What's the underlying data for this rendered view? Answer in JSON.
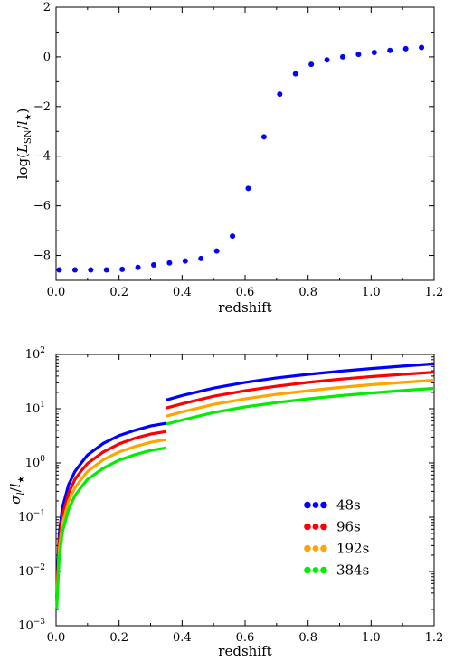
{
  "chart_data": [
    {
      "type": "scatter",
      "xlabel": "redshift",
      "ylabel": "log(L_SN/l_★)",
      "ylabel_main": "log(",
      "ylabel_L": "L",
      "ylabel_sub_SN": "SN",
      "ylabel_slash": "/",
      "ylabel_l": "l",
      "ylabel_star": "★",
      "ylabel_close": ")",
      "xlim": [
        0.0,
        1.2
      ],
      "ylim": [
        -9,
        2
      ],
      "xticks": [
        0.0,
        0.2,
        0.4,
        0.6,
        0.8,
        1.0,
        1.2
      ],
      "xtick_labels": [
        "0.0",
        "0.2",
        "0.4",
        "0.6",
        "0.8",
        "1.0",
        "1.2"
      ],
      "yticks": [
        -8,
        -6,
        -4,
        -2,
        0,
        2
      ],
      "ytick_labels": [
        "−8",
        "−6",
        "−4",
        "−2",
        "0",
        "2"
      ],
      "color": "#0000ff",
      "x": [
        0.01,
        0.06,
        0.11,
        0.16,
        0.21,
        0.26,
        0.31,
        0.36,
        0.41,
        0.46,
        0.51,
        0.56,
        0.61,
        0.66,
        0.71,
        0.76,
        0.81,
        0.86,
        0.91,
        0.96,
        1.01,
        1.06,
        1.11,
        1.16
      ],
      "y": [
        -8.58,
        -8.58,
        -8.58,
        -8.58,
        -8.56,
        -8.48,
        -8.38,
        -8.3,
        -8.22,
        -8.12,
        -7.82,
        -7.22,
        -5.3,
        -3.22,
        -1.5,
        -0.68,
        -0.3,
        -0.12,
        0.0,
        0.1,
        0.18,
        0.26,
        0.33,
        0.38
      ]
    },
    {
      "type": "line",
      "xlabel": "redshift",
      "ylabel": "σ_l/l_★",
      "ylabel_sigma": "σ",
      "ylabel_sub_l": "l",
      "ylabel_slash": "/",
      "ylabel_l": "l",
      "ylabel_star": "★",
      "xlim": [
        0.0,
        1.2
      ],
      "ylim": [
        0.001,
        100
      ],
      "yscale": "log",
      "xticks": [
        0.0,
        0.2,
        0.4,
        0.6,
        0.8,
        1.0,
        1.2
      ],
      "xtick_labels": [
        "0.0",
        "0.2",
        "0.4",
        "0.6",
        "0.8",
        "1.0",
        "1.2"
      ],
      "yticks": [
        {
          "value": 0.001,
          "base": "10",
          "exp": "-3"
        },
        {
          "value": 0.01,
          "base": "10",
          "exp": "-2"
        },
        {
          "value": 0.1,
          "base": "10",
          "exp": "-1"
        },
        {
          "value": 1,
          "base": "10",
          "exp": "0"
        },
        {
          "value": 10,
          "base": "10",
          "exp": "1"
        },
        {
          "value": 100,
          "base": "10",
          "exp": "2"
        }
      ],
      "legend_position": "lower-right",
      "series": [
        {
          "name": "48s",
          "color": "#0000ff",
          "segments": [
            {
              "x": [
                0.002,
                0.005,
                0.01,
                0.02,
                0.04,
                0.06,
                0.08,
                0.1,
                0.15,
                0.2,
                0.25,
                0.3,
                0.35
              ],
              "y": [
                0.0032,
                0.01,
                0.05,
                0.15,
                0.4,
                0.7,
                1.0,
                1.4,
                2.3,
                3.2,
                4.0,
                4.8,
                5.4
              ]
            },
            {
              "x": [
                0.35,
                0.4,
                0.5,
                0.6,
                0.7,
                0.8,
                0.9,
                1.0,
                1.1,
                1.2
              ],
              "y": [
                14.5,
                17.5,
                24.0,
                30.5,
                37.0,
                43.0,
                49.0,
                55.0,
                61.0,
                67.0
              ]
            }
          ]
        },
        {
          "name": "96s",
          "color": "#ff0000",
          "segments": [
            {
              "x": [
                0.002,
                0.005,
                0.01,
                0.02,
                0.04,
                0.06,
                0.08,
                0.1,
                0.15,
                0.2,
                0.25,
                0.3,
                0.35
              ],
              "y": [
                0.0028,
                0.008,
                0.036,
                0.105,
                0.28,
                0.5,
                0.72,
                0.98,
                1.6,
                2.25,
                2.85,
                3.4,
                3.8
              ]
            },
            {
              "x": [
                0.35,
                0.4,
                0.5,
                0.6,
                0.7,
                0.8,
                0.9,
                1.0,
                1.1,
                1.2
              ],
              "y": [
                10.3,
                12.3,
                17.0,
                21.5,
                26.0,
                30.5,
                35.0,
                39.0,
                43.0,
                47.0
              ]
            }
          ]
        },
        {
          "name": "192s",
          "color": "#ffa500",
          "segments": [
            {
              "x": [
                0.002,
                0.005,
                0.01,
                0.02,
                0.04,
                0.06,
                0.08,
                0.1,
                0.15,
                0.2,
                0.25,
                0.3,
                0.35
              ],
              "y": [
                0.0024,
                0.006,
                0.025,
                0.075,
                0.2,
                0.35,
                0.5,
                0.7,
                1.15,
                1.6,
                2.0,
                2.4,
                2.7
              ]
            },
            {
              "x": [
                0.35,
                0.4,
                0.5,
                0.6,
                0.7,
                0.8,
                0.9,
                1.0,
                1.1,
                1.2
              ],
              "y": [
                7.3,
                8.7,
                12.0,
                15.2,
                18.4,
                21.5,
                24.6,
                27.6,
                30.5,
                33.5
              ]
            }
          ]
        },
        {
          "name": "384s",
          "color": "#00ee00",
          "segments": [
            {
              "x": [
                0.002,
                0.005,
                0.01,
                0.02,
                0.04,
                0.06,
                0.08,
                0.1,
                0.15,
                0.2,
                0.25,
                0.3,
                0.35
              ],
              "y": [
                0.002,
                0.0045,
                0.018,
                0.053,
                0.14,
                0.25,
                0.36,
                0.5,
                0.8,
                1.13,
                1.42,
                1.7,
                1.9
              ]
            },
            {
              "x": [
                0.35,
                0.4,
                0.5,
                0.6,
                0.7,
                0.8,
                0.9,
                1.0,
                1.1,
                1.2
              ],
              "y": [
                5.2,
                6.2,
                8.5,
                10.8,
                13.0,
                15.2,
                17.4,
                19.5,
                21.6,
                23.7
              ]
            }
          ]
        }
      ]
    }
  ]
}
